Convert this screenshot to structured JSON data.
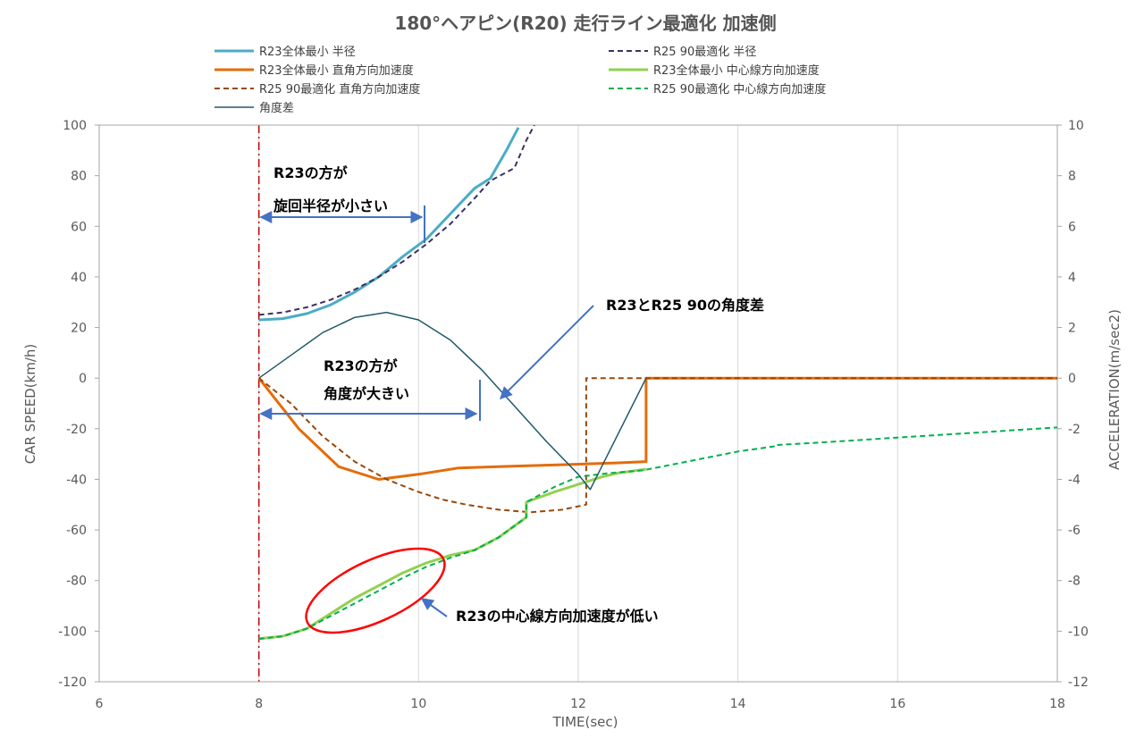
{
  "chart_data": {
    "type": "line",
    "title": "180°ヘアピン(R20)  走行ライン最適化 加速側",
    "xlabel": "TIME(sec)",
    "ylabel": "CAR SPEED(km/h)",
    "y2label": "ACCELERATION(m/sec2)",
    "xlim": [
      6,
      18
    ],
    "ylim": [
      -120,
      100
    ],
    "y2lim": [
      -12,
      10
    ],
    "x_ticks": [
      "6",
      "8",
      "10",
      "12",
      "14",
      "16",
      "18"
    ],
    "y_ticks": [
      "100",
      "80",
      "60",
      "40",
      "20",
      "0",
      "-20",
      "-40",
      "-60",
      "-80",
      "-100",
      "-120"
    ],
    "y2_ticks": [
      "10",
      "8",
      "6",
      "4",
      "2",
      "0",
      "-2",
      "-4",
      "-6",
      "-8",
      "-10",
      "-12"
    ],
    "grid": "vertical",
    "legend_position": "top",
    "series": [
      {
        "name": "R23全体最小 半径",
        "axis": "left",
        "color": "#4BACC6",
        "style": "solid",
        "width": 3,
        "x": [
          8.0,
          8.3,
          8.6,
          8.9,
          9.2,
          9.5,
          9.8,
          10.1,
          10.4,
          10.7,
          10.9,
          11.1,
          11.25
        ],
        "y": [
          23,
          23.5,
          25.5,
          29,
          34,
          40,
          48,
          55,
          65,
          75,
          79,
          90,
          99
        ]
      },
      {
        "name": "R25 90最適化 半径",
        "axis": "left",
        "color": "#3F3063",
        "style": "dash",
        "width": 2,
        "x": [
          8.0,
          8.3,
          8.6,
          8.9,
          9.2,
          9.5,
          9.8,
          10.1,
          10.4,
          10.7,
          10.9,
          11.2,
          11.35,
          11.45
        ],
        "y": [
          25,
          26,
          28,
          31,
          35,
          40,
          46,
          53,
          61,
          71,
          78,
          83,
          94,
          100
        ]
      },
      {
        "name": "R23全体最小 直角方向加速度",
        "axis": "right",
        "color": "#E46C0A",
        "style": "solid",
        "width": 3,
        "x": [
          8.0,
          8.5,
          9.0,
          9.5,
          10.0,
          10.5,
          11.0,
          11.5,
          12.0,
          12.5,
          12.85,
          12.85,
          13.5,
          18.0
        ],
        "y": [
          0,
          -2,
          -3.5,
          -4.0,
          -3.8,
          -3.55,
          -3.5,
          -3.45,
          -3.4,
          -3.35,
          -3.3,
          0,
          0,
          0
        ]
      },
      {
        "name": "R25 90最適化 直角方向加速度",
        "axis": "right",
        "color": "#984807",
        "style": "dash",
        "width": 2,
        "x": [
          8.0,
          8.4,
          8.8,
          9.2,
          9.6,
          10.0,
          10.3,
          10.6,
          11.0,
          11.4,
          11.8,
          12.1,
          12.1,
          12.8,
          18.0
        ],
        "y": [
          0,
          -1.0,
          -2.3,
          -3.3,
          -4.0,
          -4.5,
          -4.8,
          -5.0,
          -5.2,
          -5.3,
          -5.2,
          -5.0,
          0,
          0,
          0
        ]
      },
      {
        "name": "R23全体最小 中心線方向加速度",
        "axis": "right",
        "color": "#92D050",
        "style": "solid",
        "width": 3,
        "x": [
          8.0,
          8.3,
          8.6,
          8.9,
          9.2,
          9.5,
          9.8,
          10.1,
          10.4,
          10.7,
          11.0,
          11.35,
          11.35,
          11.7,
          12.0,
          12.3,
          12.5,
          12.85
        ],
        "y": [
          -10.3,
          -10.2,
          -9.9,
          -9.3,
          -8.7,
          -8.2,
          -7.7,
          -7.3,
          -7.0,
          -6.8,
          -6.3,
          -5.5,
          -4.9,
          -4.5,
          -4.2,
          -3.9,
          -3.75,
          -3.6
        ]
      },
      {
        "name": "R25 90最適化 中心線方向加速度",
        "axis": "right",
        "color": "#00B050",
        "style": "dash",
        "width": 2,
        "x": [
          8.0,
          8.3,
          8.6,
          8.9,
          9.2,
          9.5,
          9.8,
          10.1,
          10.4,
          10.7,
          11.0,
          11.35,
          11.35,
          11.7,
          12.0,
          12.4,
          12.8,
          13.2,
          13.6,
          14.0,
          14.45,
          14.45,
          15.0,
          15.5,
          16.0,
          16.5,
          17.0,
          17.5,
          18.0
        ],
        "y": [
          -10.3,
          -10.2,
          -9.9,
          -9.4,
          -8.9,
          -8.4,
          -7.9,
          -7.45,
          -7.1,
          -6.8,
          -6.3,
          -5.5,
          -4.9,
          -4.3,
          -3.9,
          -3.75,
          -3.65,
          -3.4,
          -3.15,
          -2.9,
          -2.7,
          -2.65,
          -2.55,
          -2.45,
          -2.35,
          -2.25,
          -2.15,
          -2.05,
          -1.95
        ]
      },
      {
        "name": "角度差",
        "axis": "left",
        "color": "#215968",
        "style": "solid",
        "width": 1.5,
        "x": [
          8.0,
          8.4,
          8.8,
          9.2,
          9.6,
          10.0,
          10.4,
          10.8,
          11.2,
          11.6,
          12.0,
          12.15,
          12.85
        ],
        "y": [
          0,
          9,
          18,
          24,
          26,
          23,
          15,
          3,
          -11,
          -25,
          -38,
          -44,
          0
        ]
      }
    ],
    "annotations": [
      {
        "id": "radius-note",
        "lines": [
          "R23の方が",
          "旋回半径が小さい"
        ]
      },
      {
        "id": "angle-diff-note",
        "lines": [
          "R23とR25 90の角度差"
        ]
      },
      {
        "id": "angle-note",
        "lines": [
          "R23の方が",
          "角度が大きい"
        ]
      },
      {
        "id": "accel-note",
        "lines": [
          "R23の中心線方向加速度が低い"
        ]
      }
    ],
    "colors": {
      "marker_line": "#C00000",
      "highlight_ellipse": "#FF0000",
      "annotation_arrow": "#4472C4",
      "grid": "#D9D9D9",
      "axis": "#A6A6A6"
    }
  }
}
